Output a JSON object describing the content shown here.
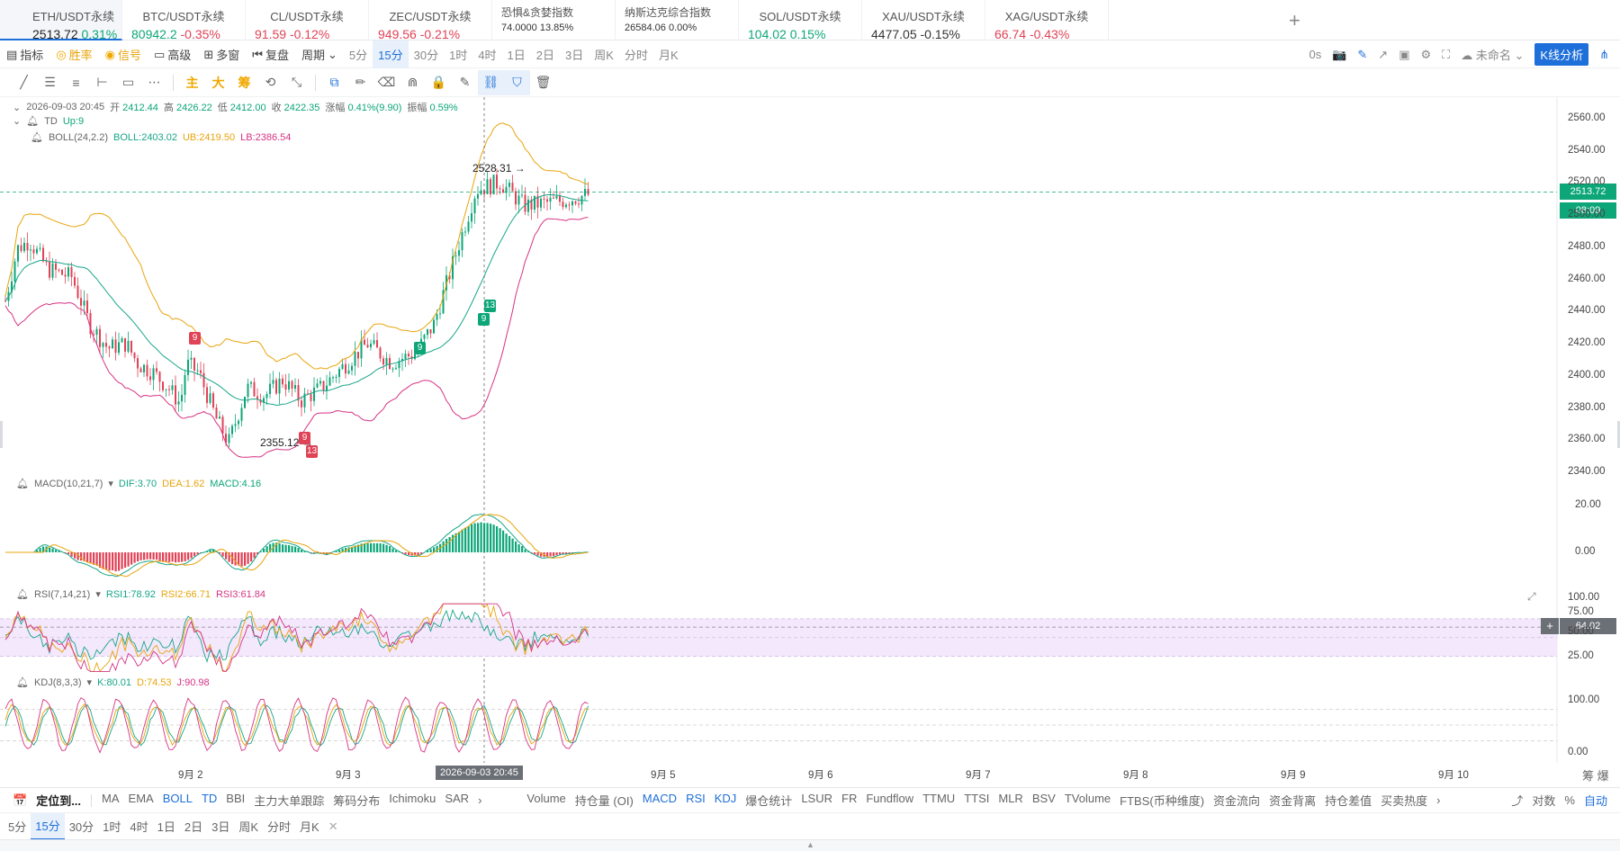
{
  "tickers": [
    {
      "name": "ETH/USDT永续",
      "price": "2513.72",
      "change": "0.31%",
      "dir": "up"
    },
    {
      "name": "BTC/USDT永续",
      "price": "80942.2",
      "change": "-0.35%",
      "dir": "up"
    },
    {
      "name": "CL/USDT永续",
      "price": "91.59",
      "change": "-0.12%",
      "dir": "dn"
    },
    {
      "name": "ZEC/USDT永续",
      "price": "949.56",
      "change": "-0.21%",
      "dir": "dn"
    },
    {
      "name": "恐惧&贪婪指数",
      "price": "74.0000",
      "change": "13.85%",
      "dir": "n"
    },
    {
      "name": "纳斯达克综合指数",
      "price": "26584.06",
      "change": "0.00%",
      "dir": "n"
    },
    {
      "name": "SOL/USDT永续",
      "price": "104.02",
      "change": "0.15%",
      "dir": "up"
    },
    {
      "name": "XAU/USDT永续",
      "price": "4477.05",
      "change": "-0.15%",
      "dir": "n"
    },
    {
      "name": "XAG/USDT永续",
      "price": "66.74",
      "change": "-0.43%",
      "dir": "dn"
    }
  ],
  "add_tab": "+",
  "toolbar": {
    "indicator": "指标",
    "winrate": "胜率",
    "signal": "信号",
    "advanced": "高级",
    "multi": "多窗",
    "replay": "复盘",
    "period": "周期",
    "periods": [
      "5分",
      "15分",
      "30分",
      "1时",
      "4时",
      "1日",
      "2日",
      "3日",
      "周K",
      "分时",
      "月K"
    ],
    "active_period": "15分",
    "right": {
      "seconds": "0s",
      "layout": "未命名",
      "kline": "K线分析"
    }
  },
  "drawing_tools": {
    "main": "主",
    "big": "大",
    "chip": "筹"
  },
  "legend": {
    "datetime": "2026-09-03 20:45",
    "open_label": "开",
    "open": "2412.44",
    "high_label": "高",
    "high": "2426.22",
    "low_label": "低",
    "low": "2412.00",
    "close_label": "收",
    "close": "2422.35",
    "chg_label": "涨幅",
    "chg": "0.41%(9.90)",
    "amp_label": "振幅",
    "amp": "0.59%",
    "td_name": "TD",
    "td_val": "Up:9",
    "boll_name": "BOLL(24,2.2)",
    "boll_mid": "BOLL:2403.02",
    "boll_ub": "UB:2419.50",
    "boll_lb": "LB:2386.54",
    "macd_name": "MACD(10,21,7)",
    "macd_dif": "DIF:3.70",
    "macd_dea": "DEA:1.62",
    "macd_val": "MACD:4.16",
    "rsi_name": "RSI(7,14,21)",
    "rsi1": "RSI1:78.92",
    "rsi2": "RSI2:66.71",
    "rsi3": "RSI3:61.84",
    "kdj_name": "KDJ(8,3,3)",
    "kdj_k": "K:80.01",
    "kdj_d": "D:74.53",
    "kdj_j": "J:90.98"
  },
  "annotations": {
    "high_label": "2528.31",
    "low_label": "2355.12",
    "td_green_1": "9",
    "td_green_2": "9",
    "td_green_3": "13",
    "td_red_1": "9",
    "td_red_2": "9",
    "td_red_3": "13"
  },
  "axes": {
    "price_ticks": [
      "2560.00",
      "2540.00",
      "2520.00",
      "2500.00",
      "2480.00",
      "2460.00",
      "2440.00",
      "2420.00",
      "2400.00",
      "2380.00",
      "2360.00",
      "2340.00"
    ],
    "last_price": "2513.72",
    "countdown": "08:09",
    "macd_ticks": [
      "20.00",
      "0.00"
    ],
    "rsi_ticks": [
      "100.00",
      "75.00",
      "50.00",
      "25.00"
    ],
    "rsi_current": "64.02",
    "kdj_ticks": [
      "100.00",
      "0.00"
    ],
    "dates": [
      "9月 2",
      "9月 3",
      "9月 5",
      "9月 6",
      "9月 7",
      "9月 8",
      "9月 9",
      "9月 10"
    ],
    "crosshair_time": "2026-09-03 20:45",
    "corner": "筹 爆"
  },
  "bottom_indicators": [
    "定位到...",
    "MA",
    "EMA",
    "BOLL",
    "TD",
    "BBI",
    "主力大单跟踪",
    "筹码分布",
    "Ichimoku",
    "SAR",
    "Volume",
    "持仓量 (OI)",
    "MACD",
    "RSI",
    "KDJ",
    "爆仓统计",
    "LSUR",
    "FR",
    "Fundflow",
    "TTMU",
    "TTSI",
    "MLR",
    "BSV",
    "TVolume",
    "FTBS(币种维度)",
    "资金流向",
    "资金背离",
    "持仓差值",
    "买卖热度"
  ],
  "bottom_active": [
    "BOLL",
    "TD",
    "MACD",
    "RSI",
    "KDJ"
  ],
  "bottom_right": {
    "log": "对数",
    "pct": "%",
    "auto": "自动"
  },
  "bottom_periods": [
    "5分",
    "15分",
    "30分",
    "1时",
    "4时",
    "1日",
    "2日",
    "3日",
    "周K",
    "分时",
    "月K"
  ],
  "colors": {
    "up": "#0da678",
    "down": "#e04256",
    "boll_mid": "#17a589",
    "boll_ub": "#e8a40c",
    "boll_lb": "#d63384",
    "accent": "#1e6fd9"
  }
}
